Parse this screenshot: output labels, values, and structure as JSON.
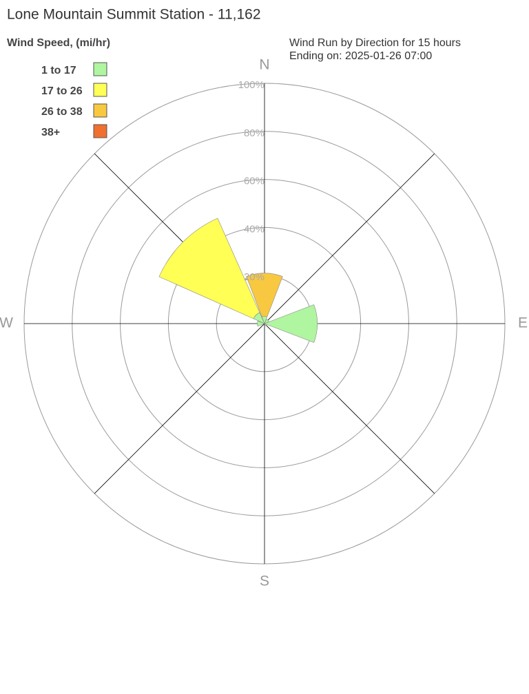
{
  "chart_data": {
    "type": "windrose",
    "title": "Lone Mountain Summit Station - 11,162",
    "subtitle": [
      "Wind Run by Direction for 15 hours",
      "Ending on: 2025-01-26 07:00"
    ],
    "legend_title": "Wind Speed, (mi/hr)",
    "categories": [
      "N",
      null,
      "E",
      null,
      "S",
      null,
      "W",
      null
    ],
    "series": [
      {
        "name": "1 to 17",
        "color": "#b0f5a0",
        "values": [
          3,
          2,
          22,
          1,
          0,
          0,
          3,
          5
        ]
      },
      {
        "name": "17 to 26",
        "color": "#ffff55",
        "values": [
          0,
          0,
          0,
          0,
          0,
          0,
          0,
          43
        ]
      },
      {
        "name": "26 to 38",
        "color": "#f8c840",
        "values": [
          18,
          0,
          0,
          0,
          0,
          0,
          0,
          0
        ]
      },
      {
        "name": "38+",
        "color": "#f07030",
        "values": [
          0,
          0,
          0,
          0,
          0,
          0,
          0,
          0
        ]
      }
    ],
    "rlim": [
      0,
      100
    ],
    "rticks": [
      {
        "value": 20,
        "label": "20%"
      },
      {
        "value": 40,
        "label": "40%"
      },
      {
        "value": 60,
        "label": "60%"
      },
      {
        "value": 80,
        "label": "80%"
      },
      {
        "value": 100,
        "label": "100%"
      }
    ]
  }
}
